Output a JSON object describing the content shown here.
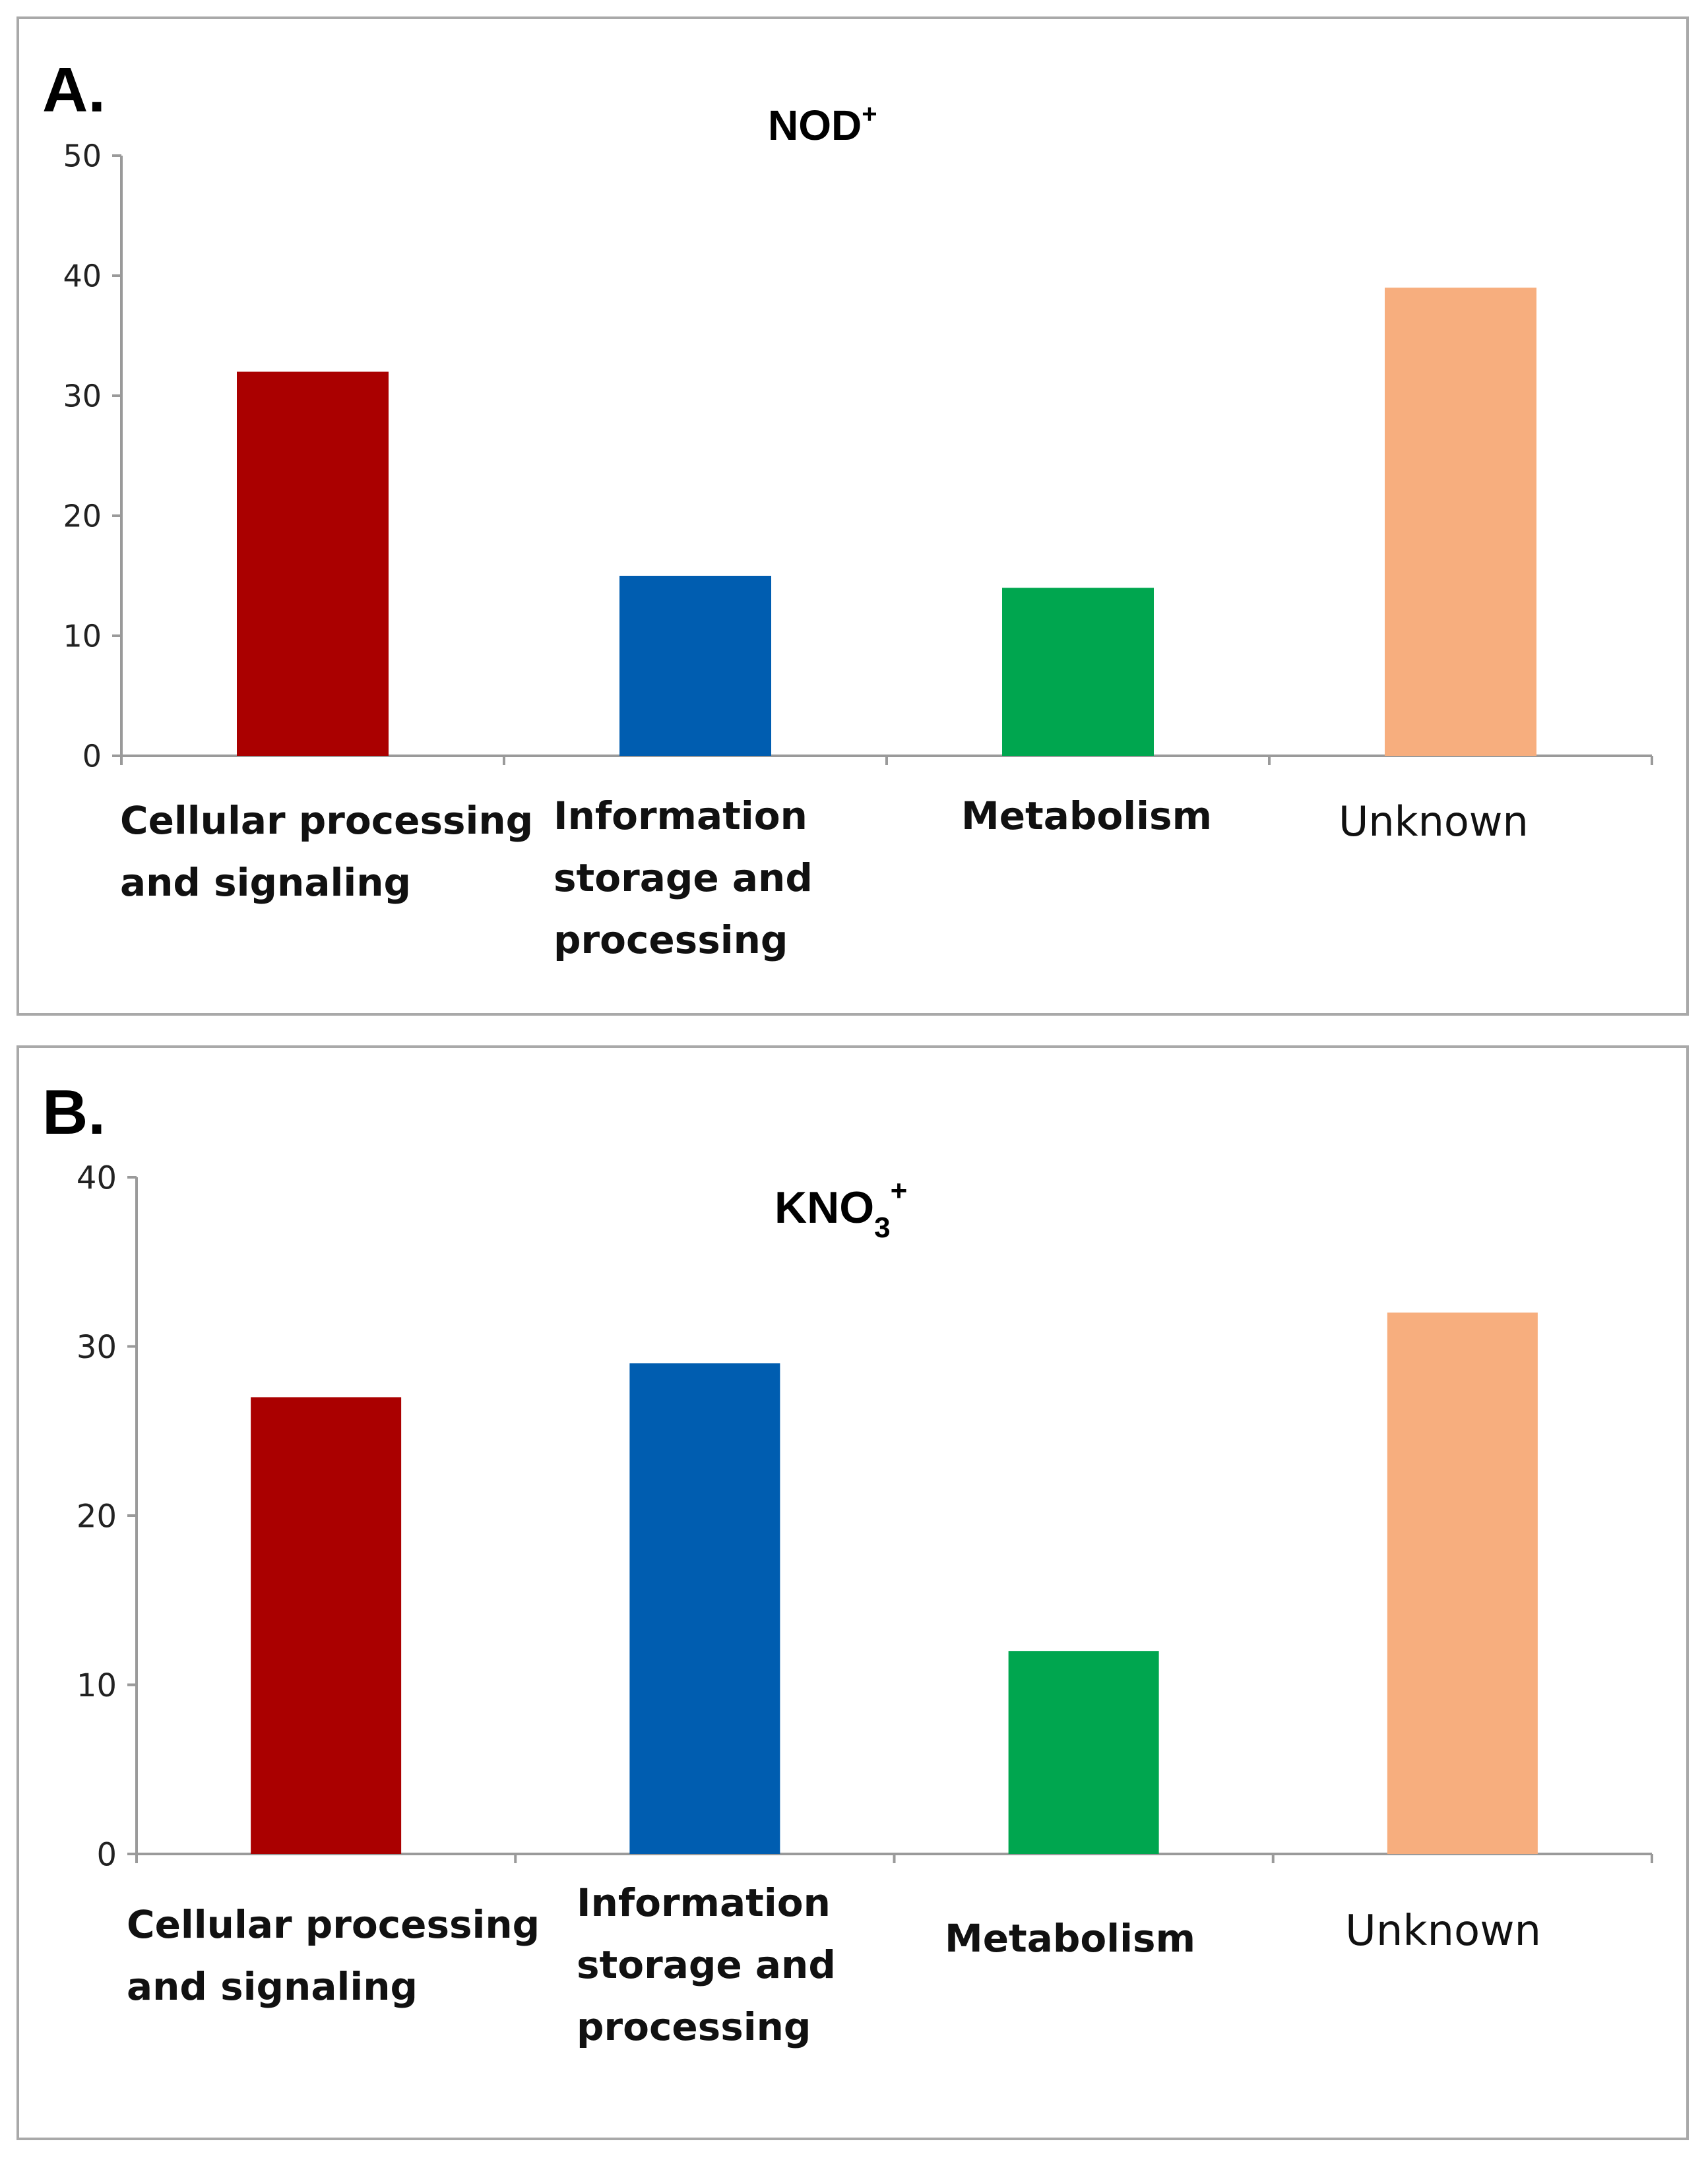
{
  "chart_data": [
    {
      "panel_label": "A.",
      "type": "bar",
      "title": "NOD",
      "title_sup": "+",
      "categories": [
        [
          "Cellular processing",
          "and signaling"
        ],
        [
          "Information",
          "storage and",
          "processing"
        ],
        [
          "Metabolism"
        ],
        [
          "Unknown"
        ]
      ],
      "values": [
        32,
        15,
        14,
        39
      ],
      "colors": [
        "#aa0000",
        "#005db0",
        "#00a64f",
        "#f7ae7e"
      ],
      "ylim": [
        0,
        50
      ],
      "yticks": [
        "0",
        "10",
        "20",
        "30",
        "40",
        "50"
      ],
      "xlabel": "",
      "ylabel": "",
      "grid": false
    },
    {
      "panel_label": "B.",
      "type": "bar",
      "title": "KNO",
      "title_sub": "3",
      "title_sup": "+",
      "categories": [
        [
          "Cellular processing",
          "and signaling"
        ],
        [
          "Information",
          "storage and",
          "processing"
        ],
        [
          "Metabolism"
        ],
        [
          "Unknown"
        ]
      ],
      "values": [
        27,
        29,
        12,
        32
      ],
      "colors": [
        "#aa0000",
        "#005db0",
        "#00a64f",
        "#f7ae7e"
      ],
      "ylim": [
        0,
        40
      ],
      "yticks": [
        "0",
        "10",
        "20",
        "30",
        "40"
      ],
      "xlabel": "",
      "ylabel": "",
      "grid": false
    }
  ]
}
